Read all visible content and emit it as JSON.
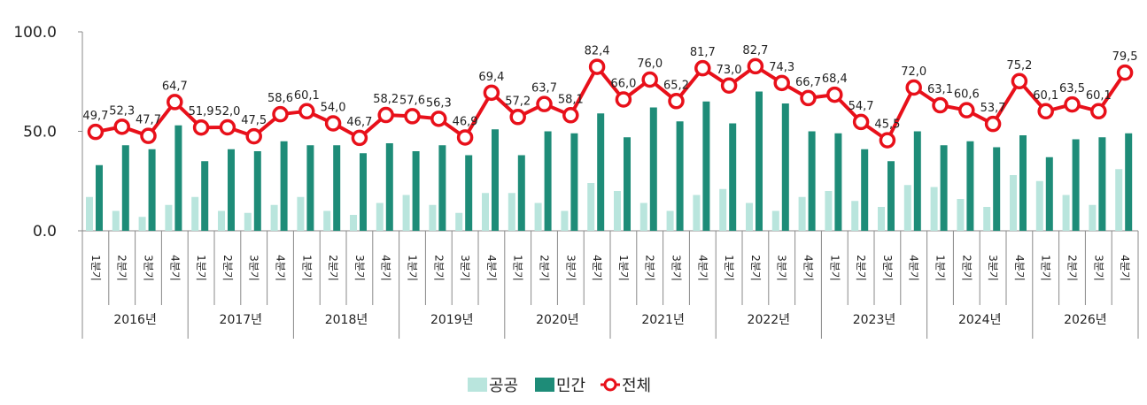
{
  "chart_data": {
    "type": "bar",
    "title": "",
    "xlabel": "",
    "ylabel": "",
    "ylim": [
      0,
      100
    ],
    "y_ticks": [
      "0.0",
      "50.0",
      "100.0"
    ],
    "grid": false,
    "legend_position": "bottom",
    "years": [
      "2016년",
      "2017년",
      "2018년",
      "2019년",
      "2020년",
      "2021년",
      "2022년",
      "2023년",
      "2024년",
      "2026년"
    ],
    "quarter_labels": [
      "1분기",
      "2분기",
      "3분기",
      "4분기"
    ],
    "series": [
      {
        "name": "공공",
        "kind": "bar",
        "color": "#b9e5dd",
        "values": [
          17,
          10,
          7,
          13,
          17,
          10,
          9,
          13,
          17,
          10,
          8,
          14,
          18,
          13,
          9,
          19,
          19,
          14,
          10,
          24,
          20,
          14,
          10,
          18,
          21,
          14,
          10,
          17,
          20,
          15,
          12,
          23,
          22,
          16,
          12,
          28,
          25,
          18,
          13,
          31
        ]
      },
      {
        "name": "민간",
        "kind": "bar",
        "color": "#1e8c78",
        "values": [
          33,
          43,
          41,
          53,
          35,
          41,
          40,
          45,
          43,
          43,
          39,
          44,
          40,
          43,
          38,
          51,
          38,
          50,
          49,
          59,
          47,
          62,
          55,
          65,
          54,
          70,
          64,
          50,
          49,
          41,
          35,
          50,
          43,
          45,
          42,
          48,
          37,
          46,
          47,
          49
        ]
      },
      {
        "name": "전체",
        "kind": "line",
        "color": "#e8101a",
        "values": [
          49.7,
          52.3,
          47.7,
          64.7,
          51.9,
          52.0,
          47.5,
          58.6,
          60.1,
          54.0,
          46.7,
          58.2,
          57.6,
          56.3,
          46.9,
          69.4,
          57.2,
          63.7,
          58.1,
          82.4,
          66.0,
          76.0,
          65.2,
          81.7,
          73.0,
          82.7,
          74.3,
          66.7,
          68.4,
          54.7,
          45.5,
          72.0,
          63.1,
          60.6,
          53.7,
          75.2,
          60.1,
          63.5,
          60.1,
          79.5
        ],
        "labels": [
          "49,7",
          "52,3",
          "47,7",
          "64,7",
          "51,9",
          "52,0",
          "47,5",
          "58,6",
          "60,1",
          "54,0",
          "46,7",
          "58,2",
          "57,6",
          "56,3",
          "46,9",
          "69,4",
          "57,2",
          "63,7",
          "58,1",
          "82,4",
          "66,0",
          "76,0",
          "65,2",
          "81,7",
          "73,0",
          "82,7",
          "74,3",
          "66,7",
          "68,4",
          "54,7",
          "45,5",
          "72,0",
          "63,1",
          "60,6",
          "53,7",
          "75,2",
          "60,1",
          "63,5",
          "60,1",
          "79,5"
        ]
      }
    ]
  },
  "legend": {
    "public_label": "공공",
    "private_label": "민간",
    "total_label": "전체"
  }
}
